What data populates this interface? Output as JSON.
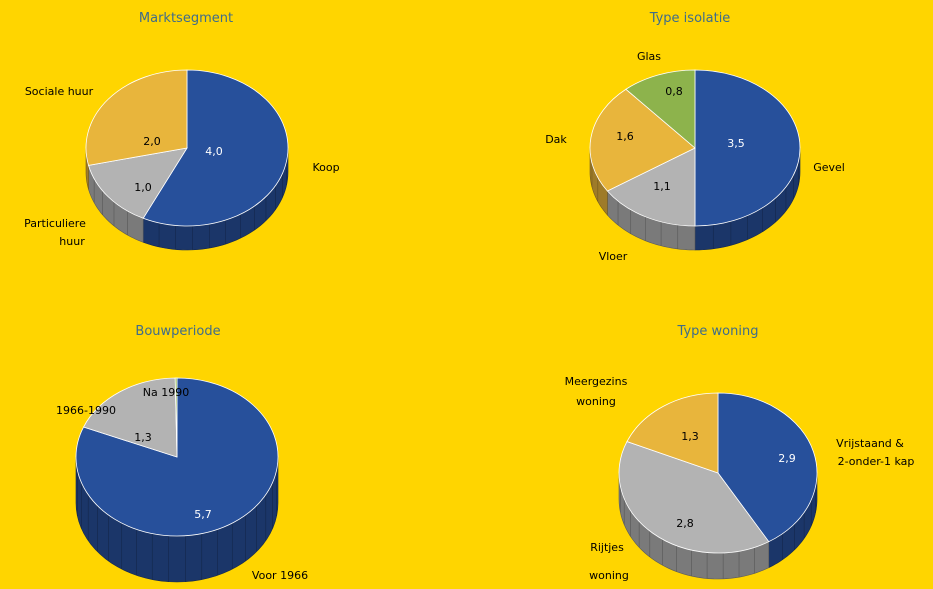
{
  "colors": {
    "background": "#FFD500",
    "blue": "#27509B",
    "gray": "#B3B3B3",
    "orange": "#E8B53C",
    "green": "#8DB34C",
    "title": "#3F6C8A"
  },
  "chart_data": [
    {
      "type": "pie",
      "title": "Marktsegment",
      "slices": [
        {
          "label": "Koop",
          "value": 4.0,
          "value_label": "4,0",
          "color": "#27509B"
        },
        {
          "label": "Particuliere huur",
          "value": 1.0,
          "value_label": "1,0",
          "color": "#B3B3B3"
        },
        {
          "label": "Sociale huur",
          "value": 2.0,
          "value_label": "2,0",
          "color": "#E8B53C"
        }
      ]
    },
    {
      "type": "pie",
      "title": "Type isolatie",
      "slices": [
        {
          "label": "Gevel",
          "value": 3.5,
          "value_label": "3,5",
          "color": "#27509B"
        },
        {
          "label": "Vloer",
          "value": 1.1,
          "value_label": "1,1",
          "color": "#B3B3B3"
        },
        {
          "label": "Dak",
          "value": 1.6,
          "value_label": "1,6",
          "color": "#E8B53C"
        },
        {
          "label": "Glas",
          "value": 0.8,
          "value_label": "0,8",
          "color": "#8DB34C"
        }
      ]
    },
    {
      "type": "pie",
      "title": "Bouwperiode",
      "slices": [
        {
          "label": "Voor 1966",
          "value": 5.7,
          "value_label": "5,7",
          "color": "#27509B"
        },
        {
          "label": "1966-1990",
          "value": 1.3,
          "value_label": "1,3",
          "color": "#B3B3B3"
        },
        {
          "label": "Na 1990",
          "value": 0.02,
          "value_label": "",
          "color": "#8DB34C"
        }
      ]
    },
    {
      "type": "pie",
      "title": "Type woning",
      "slices": [
        {
          "label": "Vrijstaand & 2-onder-1 kap",
          "value": 2.9,
          "value_label": "2,9",
          "color": "#27509B"
        },
        {
          "label": "Rijtjes woning",
          "value": 2.8,
          "value_label": "2,8",
          "color": "#B3B3B3"
        },
        {
          "label": "Meergezins woning",
          "value": 1.3,
          "value_label": "1,3",
          "color": "#E8B53C"
        }
      ]
    }
  ]
}
